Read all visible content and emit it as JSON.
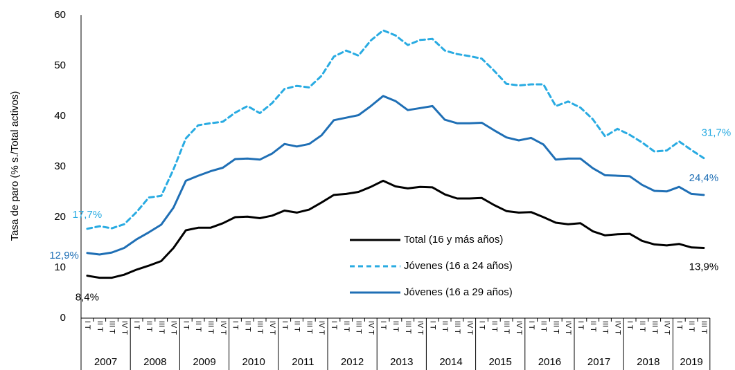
{
  "chart_data": {
    "type": "line",
    "ylabel": "Tasa de paro (% s./Total activos)",
    "ylim": [
      0,
      60
    ],
    "yticks": [
      0,
      10,
      20,
      30,
      40,
      50,
      60
    ],
    "grid": false,
    "groups": [
      {
        "label": "2007",
        "categories": [
          "I T",
          "II T",
          "III T",
          "IV T"
        ]
      },
      {
        "label": "2008",
        "categories": [
          "I T",
          "II T",
          "III T",
          "IV T"
        ]
      },
      {
        "label": "2009",
        "categories": [
          "I T",
          "II T",
          "III T",
          "IV T"
        ]
      },
      {
        "label": "2010",
        "categories": [
          "I T",
          "II T",
          "III T",
          "IV T"
        ]
      },
      {
        "label": "2011",
        "categories": [
          "I T",
          "II T",
          "III T",
          "IV T"
        ]
      },
      {
        "label": "2012",
        "categories": [
          "I T",
          "II T",
          "III T",
          "IV T"
        ]
      },
      {
        "label": "2013",
        "categories": [
          "I T",
          "II T",
          "III T",
          "IV T"
        ]
      },
      {
        "label": "2014",
        "categories": [
          "I T",
          "II T",
          "III T",
          "IV T"
        ]
      },
      {
        "label": "2015",
        "categories": [
          "I T",
          "II T",
          "III T",
          "IV T"
        ]
      },
      {
        "label": "2016",
        "categories": [
          "I T",
          "II T",
          "III T",
          "IV T"
        ]
      },
      {
        "label": "2017",
        "categories": [
          "I T",
          "II T",
          "III T",
          "IV T"
        ]
      },
      {
        "label": "2018",
        "categories": [
          "I T",
          "II T",
          "III T",
          "IV T"
        ]
      },
      {
        "label": "2019",
        "categories": [
          "I T",
          "II T",
          "III T"
        ]
      }
    ],
    "series": [
      {
        "name": "Total (16 y más años)",
        "color": "#000000",
        "dash": false,
        "values": [
          8.4,
          8.0,
          8.0,
          8.6,
          9.6,
          10.4,
          11.3,
          13.9,
          17.4,
          17.9,
          17.9,
          18.8,
          20.0,
          20.1,
          19.8,
          20.3,
          21.3,
          20.9,
          21.5,
          22.9,
          24.4,
          24.6,
          25.0,
          26.0,
          27.2,
          26.1,
          25.7,
          26.0,
          25.9,
          24.5,
          23.7,
          23.7,
          23.8,
          22.4,
          21.2,
          20.9,
          21.0,
          20.0,
          18.9,
          18.6,
          18.8,
          17.2,
          16.4,
          16.6,
          16.7,
          15.3,
          14.6,
          14.4,
          14.7,
          14.0,
          13.9
        ],
        "value_labels": [
          "8,4%",
          null,
          null,
          null,
          null,
          null,
          null,
          null,
          null,
          null,
          null,
          null,
          null,
          null,
          null,
          null,
          null,
          null,
          null,
          null,
          null,
          null,
          null,
          null,
          null,
          null,
          null,
          null,
          null,
          null,
          null,
          null,
          null,
          null,
          null,
          null,
          null,
          null,
          null,
          null,
          null,
          null,
          null,
          null,
          null,
          null,
          null,
          null,
          null,
          null,
          "13,9%"
        ]
      },
      {
        "name": "Jóvenes (16 a 24 años)",
        "color": "#29abe2",
        "dash": true,
        "values": [
          17.7,
          18.2,
          17.8,
          18.6,
          21.0,
          23.9,
          24.2,
          29.5,
          35.6,
          38.2,
          38.6,
          38.9,
          40.7,
          42.0,
          40.6,
          42.6,
          45.4,
          46.0,
          45.7,
          48.0,
          51.8,
          53.0,
          52.0,
          55.0,
          57.0,
          56.0,
          54.1,
          55.1,
          55.3,
          53.0,
          52.3,
          51.9,
          51.4,
          49.0,
          46.4,
          46.1,
          46.3,
          46.3,
          42.0,
          42.9,
          41.7,
          39.4,
          36.0,
          37.5,
          36.3,
          34.8,
          33.0,
          33.2,
          35.0,
          33.3,
          31.7
        ],
        "value_labels": [
          "17,7%",
          null,
          null,
          null,
          null,
          null,
          null,
          null,
          null,
          null,
          null,
          null,
          null,
          null,
          null,
          null,
          null,
          null,
          null,
          null,
          null,
          null,
          null,
          null,
          null,
          null,
          null,
          null,
          null,
          null,
          null,
          null,
          null,
          null,
          null,
          null,
          null,
          null,
          null,
          null,
          null,
          null,
          null,
          null,
          null,
          null,
          null,
          null,
          null,
          null,
          "31,7%"
        ]
      },
      {
        "name": "Jóvenes (16 a 29 años)",
        "color": "#1f6fb5",
        "dash": false,
        "values": [
          12.9,
          12.6,
          13.0,
          13.9,
          15.6,
          17.0,
          18.5,
          21.9,
          27.2,
          28.2,
          29.1,
          29.8,
          31.5,
          31.6,
          31.4,
          32.6,
          34.5,
          34.0,
          34.5,
          36.2,
          39.2,
          39.7,
          40.2,
          42.0,
          44.0,
          43.0,
          41.2,
          41.6,
          42.0,
          39.3,
          38.6,
          38.6,
          38.7,
          37.2,
          35.8,
          35.2,
          35.7,
          34.4,
          31.4,
          31.6,
          31.6,
          29.7,
          28.3,
          28.2,
          28.1,
          26.4,
          25.2,
          25.1,
          26.0,
          24.6,
          24.4
        ],
        "value_labels": [
          "12,9%",
          null,
          null,
          null,
          null,
          null,
          null,
          null,
          null,
          null,
          null,
          null,
          null,
          null,
          null,
          null,
          null,
          null,
          null,
          null,
          null,
          null,
          null,
          null,
          null,
          null,
          null,
          null,
          null,
          null,
          null,
          null,
          null,
          null,
          null,
          null,
          null,
          null,
          null,
          null,
          null,
          null,
          null,
          null,
          null,
          null,
          null,
          null,
          null,
          null,
          "24,4%"
        ]
      }
    ]
  }
}
